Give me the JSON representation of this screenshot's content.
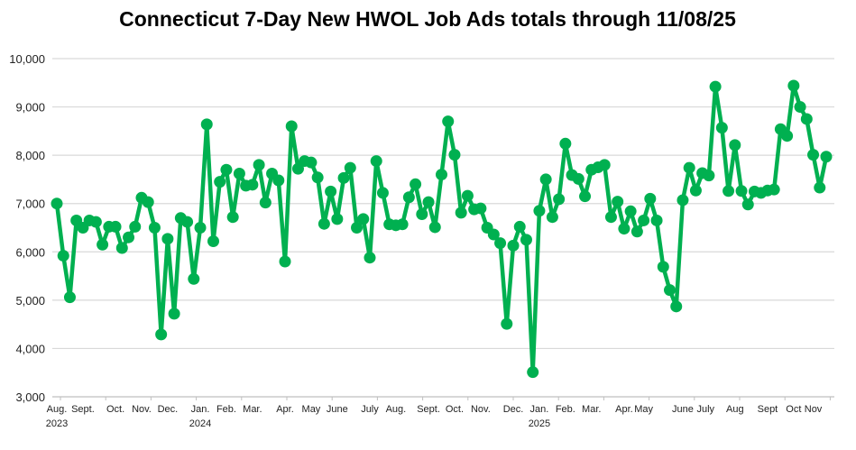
{
  "chart_data": {
    "type": "line",
    "title": "Connecticut 7-Day New HWOL Job Ads totals through 11/08/25",
    "xlabel": "",
    "ylabel": "",
    "ylim": [
      3000,
      10000
    ],
    "yticks": [
      3000,
      4000,
      5000,
      6000,
      7000,
      8000,
      9000,
      10000
    ],
    "ytick_labels": [
      "3,000",
      "4,000",
      "5,000",
      "6,000",
      "7,000",
      "8,000",
      "9,000",
      "10,000"
    ],
    "grid": true,
    "legend": "none",
    "series_color": "#00b050",
    "x_labels": [
      {
        "text": "Aug.",
        "year": "2023",
        "at": 0
      },
      {
        "text": "Sept.",
        "at": 4
      },
      {
        "text": "Oct.",
        "at": 9
      },
      {
        "text": "Nov.",
        "at": 13
      },
      {
        "text": "Dec.",
        "at": 17
      },
      {
        "text": "Jan.",
        "year": "2024",
        "at": 22
      },
      {
        "text": "Feb.",
        "at": 26
      },
      {
        "text": "Mar.",
        "at": 30
      },
      {
        "text": "Apr.",
        "at": 35
      },
      {
        "text": "May",
        "at": 39
      },
      {
        "text": "June",
        "at": 43
      },
      {
        "text": "July",
        "at": 48
      },
      {
        "text": "Aug.",
        "at": 52
      },
      {
        "text": "Sept.",
        "at": 57
      },
      {
        "text": "Oct.",
        "at": 61
      },
      {
        "text": "Nov.",
        "at": 65
      },
      {
        "text": "Dec.",
        "at": 70
      },
      {
        "text": "Jan.",
        "year": "2025",
        "at": 74
      },
      {
        "text": "Feb.",
        "at": 78
      },
      {
        "text": "Mar.",
        "at": 82
      },
      {
        "text": "Apr.",
        "at": 87
      },
      {
        "text": "May",
        "at": 90
      },
      {
        "text": "June",
        "at": 96
      },
      {
        "text": "July",
        "at": 99.5
      },
      {
        "text": "Aug",
        "at": 104
      },
      {
        "text": "Sept",
        "at": 109
      },
      {
        "text": "Oct",
        "at": 113
      },
      {
        "text": "Nov",
        "at": 116
      }
    ],
    "series": [
      {
        "name": "7-Day New HWOL Job Ads",
        "values": [
          7000,
          5920,
          5060,
          6650,
          6500,
          6650,
          6620,
          6150,
          6520,
          6520,
          6080,
          6300,
          6520,
          7120,
          7030,
          6500,
          4290,
          6270,
          4720,
          6700,
          6620,
          5440,
          6500,
          8640,
          6220,
          7450,
          7700,
          6720,
          7620,
          7370,
          7390,
          7800,
          7020,
          7620,
          7480,
          5800,
          8600,
          7720,
          7880,
          7850,
          7540,
          6580,
          7250,
          6680,
          7530,
          7740,
          6500,
          6680,
          5880,
          7880,
          7220,
          6570,
          6550,
          6570,
          7130,
          7400,
          6780,
          7030,
          6510,
          7600,
          8700,
          8010,
          6810,
          7160,
          6880,
          6900,
          6500,
          6360,
          6180,
          4510,
          6130,
          6520,
          6250,
          3510,
          6850,
          7500,
          6720,
          7090,
          8240,
          7590,
          7510,
          7150,
          7700,
          7750,
          7800,
          6720,
          7040,
          6480,
          6840,
          6420,
          6650,
          7100,
          6650,
          5690,
          5210,
          4870,
          7070,
          7740,
          7270,
          7630,
          7580,
          9420,
          8570,
          7260,
          8210,
          7260,
          6980,
          7250,
          7220,
          7270,
          7290,
          8540,
          8400,
          9440,
          9000,
          8750,
          8010,
          7330,
          7970
        ]
      }
    ]
  }
}
